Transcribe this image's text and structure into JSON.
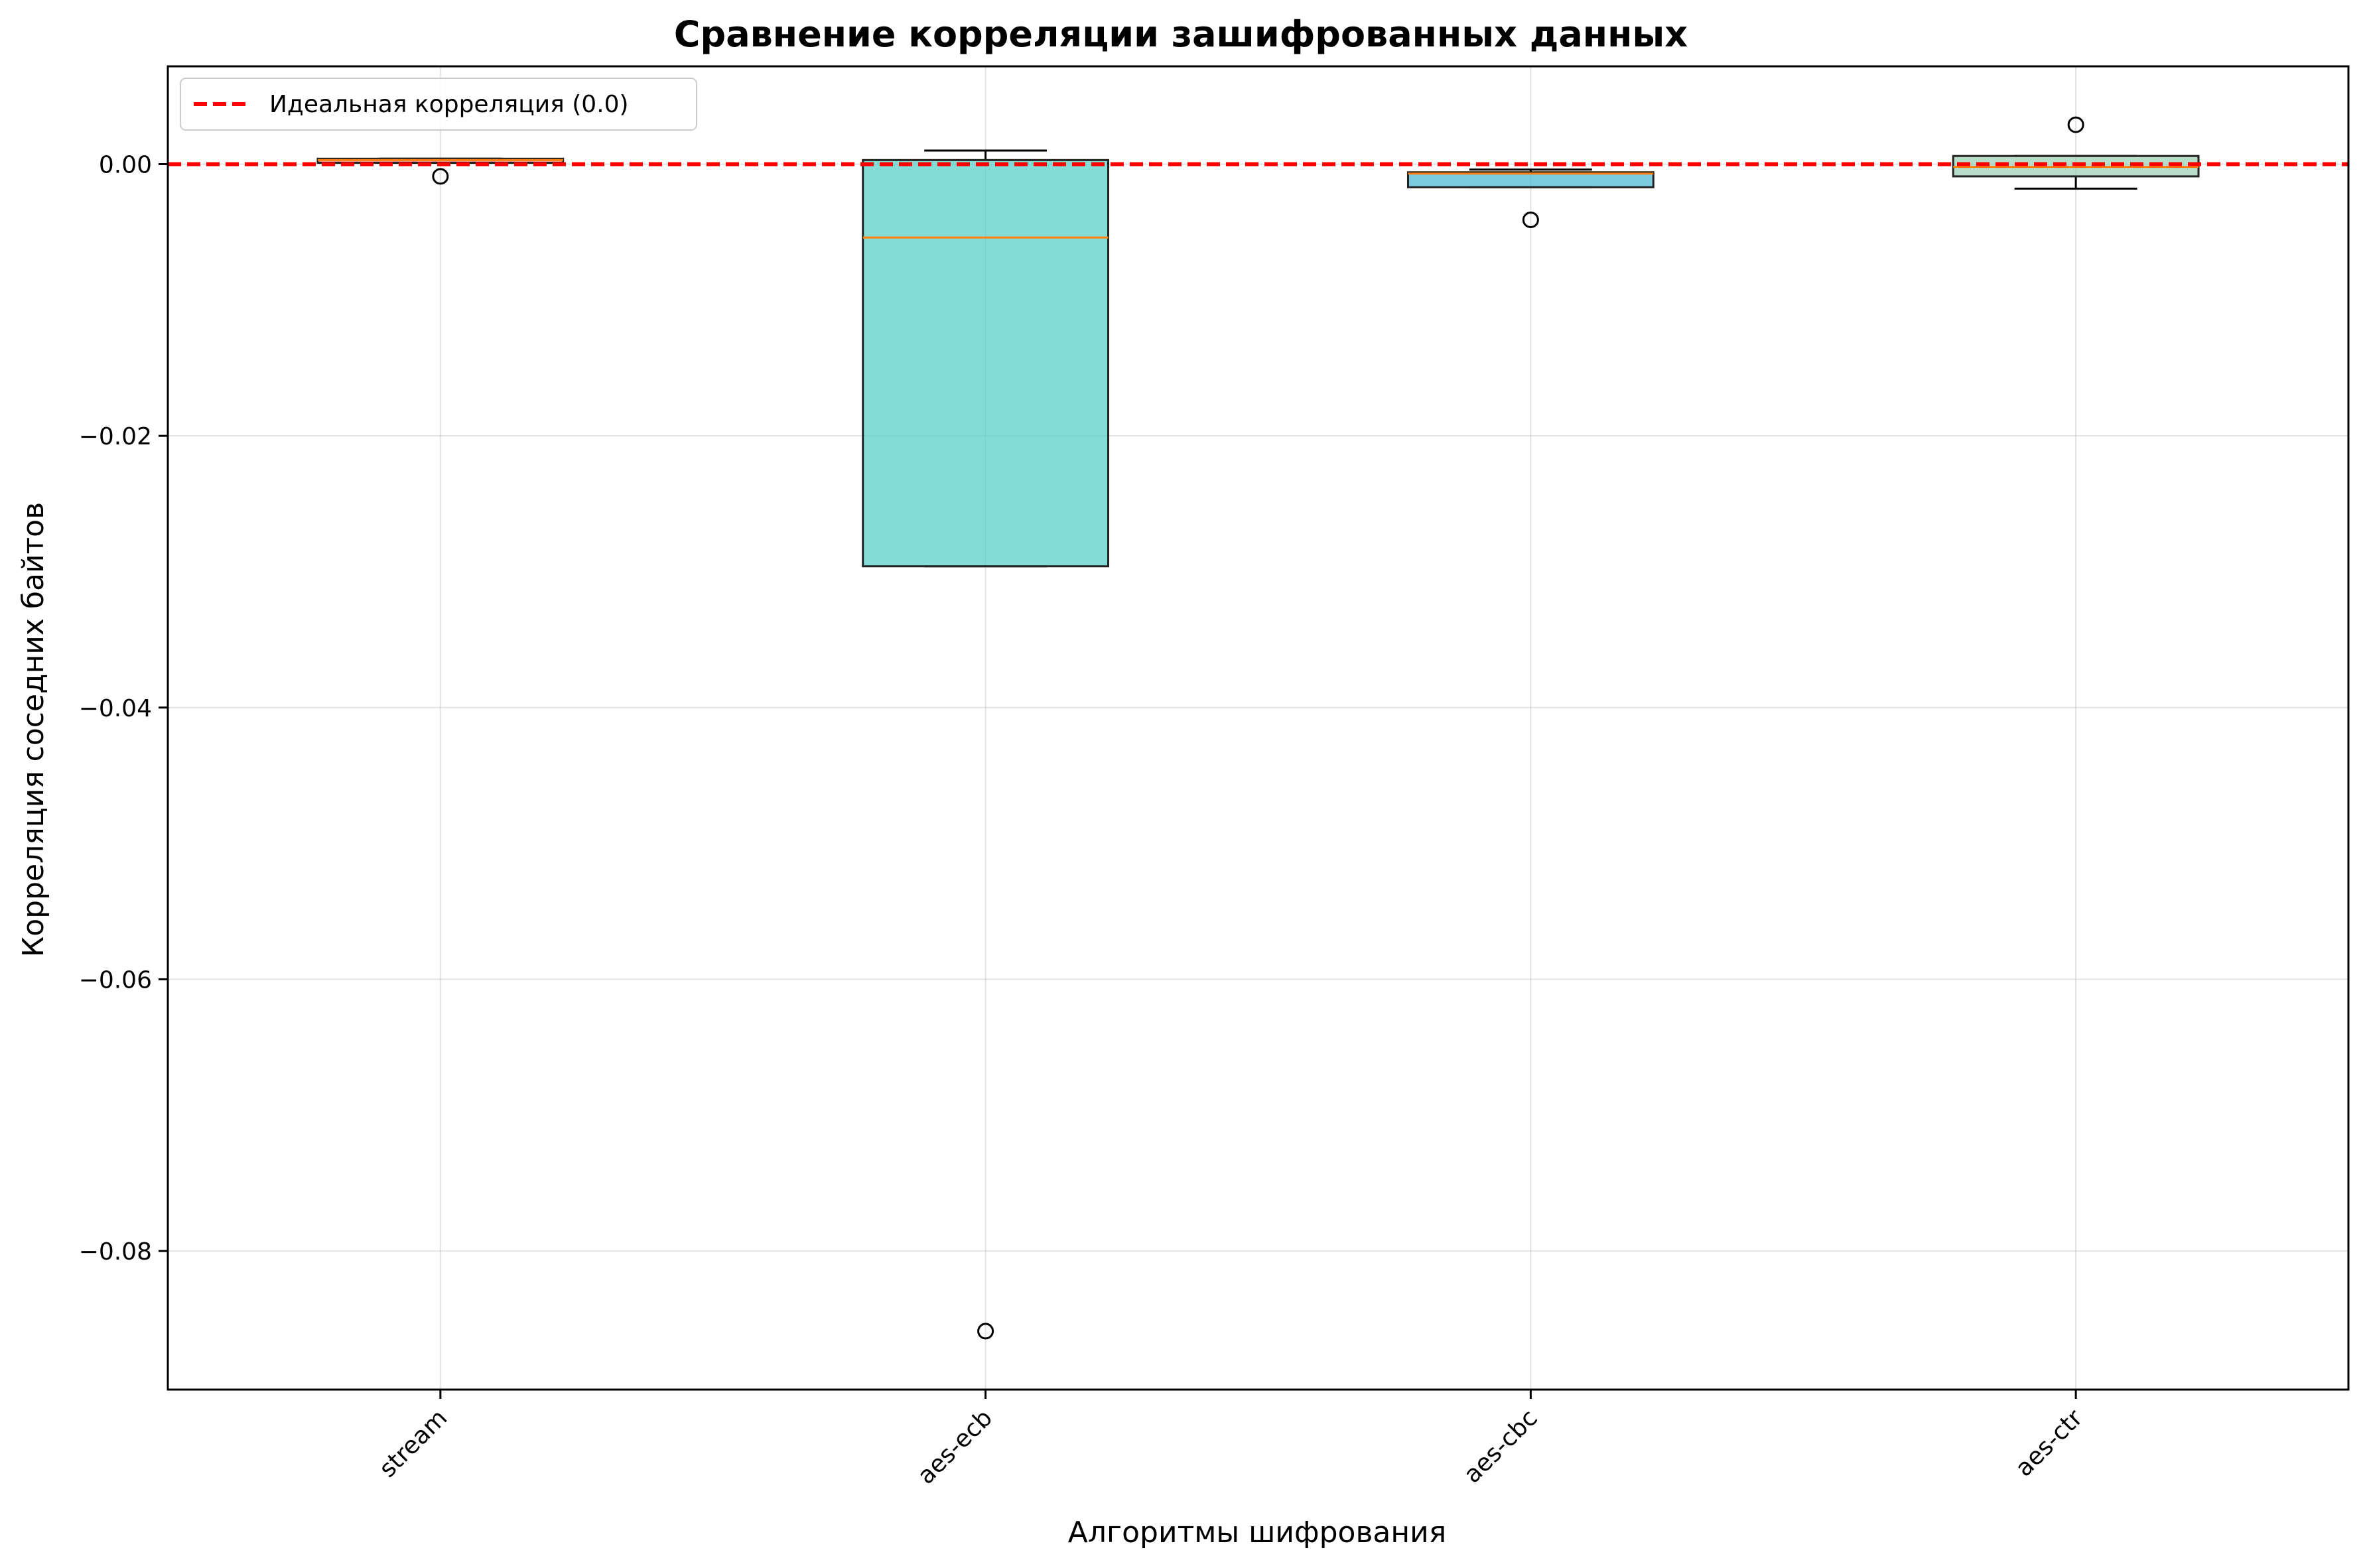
{
  "chart_data": {
    "type": "box",
    "title": "Сравнение корреляции зашифрованных данных",
    "xlabel": "Алгоритмы шифрования",
    "ylabel": "Корреляция соседних байтов",
    "ylim": [
      -0.0902,
      0.0072
    ],
    "yticks": [
      0.0,
      -0.02,
      -0.04,
      -0.06,
      -0.08
    ],
    "ytick_labels": [
      "0.00",
      "−0.02",
      "−0.04",
      "−0.06",
      "−0.08"
    ],
    "grid": true,
    "legend_position": "top-left",
    "reference_line": {
      "label": "Идеальная корреляция (0.0)",
      "value": 0.0,
      "color": "#ff0000",
      "style": "dashed"
    },
    "categories": [
      "stream",
      "aes-ecb",
      "aes-cbc",
      "aes-ctr"
    ],
    "boxes": [
      {
        "name": "stream",
        "whisker_low": 0.0001,
        "q1": 0.0001,
        "median": 0.0003,
        "q3": 0.0004,
        "whisker_high": 0.0004,
        "outliers": [
          -0.0009
        ],
        "color": "#ff6b6b"
      },
      {
        "name": "aes-ecb",
        "whisker_low": -0.0296,
        "q1": -0.0296,
        "median": -0.0054,
        "q3": 0.0003,
        "whisker_high": 0.001,
        "outliers": [
          -0.0859
        ],
        "color": "#4ecdc4"
      },
      {
        "name": "aes-cbc",
        "whisker_low": -0.0017,
        "q1": -0.0017,
        "median": -0.0007,
        "q3": -0.0006,
        "whisker_high": -0.0004,
        "outliers": [
          -0.0041
        ],
        "color": "#45b7d1"
      },
      {
        "name": "aes-ctr",
        "whisker_low": -0.0018,
        "q1": -0.0009,
        "median": -0.0002,
        "q3": 0.0006,
        "whisker_high": 0.0006,
        "outliers": [
          0.0029
        ],
        "color": "#96ceb4"
      }
    ],
    "median_color": "#ff7f0e"
  }
}
